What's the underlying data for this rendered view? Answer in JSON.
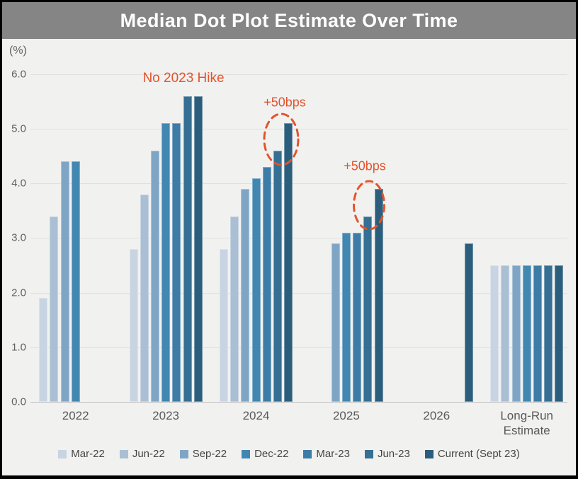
{
  "window": {
    "title": "Median Dot Plot Estimate Over Time"
  },
  "chart_data": {
    "type": "bar",
    "title": "Median Dot Plot Estimate Over Time",
    "ylabel": "(%)",
    "ylim": [
      0,
      6
    ],
    "grid": true,
    "legend_position": "bottom",
    "y_ticks": [
      {
        "label": "6.0",
        "value": 6.0
      },
      {
        "label": "5.0",
        "value": 5.0
      },
      {
        "label": "4.0",
        "value": 4.0
      },
      {
        "label": "3.0",
        "value": 3.0
      },
      {
        "label": "2.0",
        "value": 2.0
      },
      {
        "label": "1.0",
        "value": 1.0
      },
      {
        "label": "0.0",
        "value": 0.0
      }
    ],
    "categories": [
      "2022",
      "2023",
      "2024",
      "2025",
      "2026",
      "Long-Run Estimate"
    ],
    "series": [
      {
        "name": "Mar-22",
        "color": "#c8d4e2",
        "values": [
          1.9,
          2.8,
          2.8,
          null,
          null,
          2.5
        ]
      },
      {
        "name": "Jun-22",
        "color": "#aabfd4",
        "values": [
          3.4,
          3.8,
          3.4,
          null,
          null,
          2.5
        ]
      },
      {
        "name": "Sep-22",
        "color": "#7fa5c5",
        "values": [
          4.4,
          4.6,
          3.9,
          2.9,
          null,
          2.5
        ]
      },
      {
        "name": "Dec-22",
        "color": "#4187b2",
        "values": [
          4.4,
          5.1,
          4.1,
          3.1,
          null,
          2.5
        ]
      },
      {
        "name": "Mar-23",
        "color": "#3d7ca6",
        "values": [
          null,
          5.1,
          4.3,
          3.1,
          null,
          2.5
        ]
      },
      {
        "name": "Jun-23",
        "color": "#356f93",
        "values": [
          null,
          5.6,
          4.6,
          3.4,
          null,
          2.5
        ]
      },
      {
        "name": "Current (Sept 23)",
        "color": "#2b5e7d",
        "values": [
          null,
          5.6,
          5.1,
          3.9,
          2.9,
          2.5
        ]
      }
    ],
    "annotations": [
      {
        "text": "No 2023 Hike",
        "color": "#e2542c",
        "target": "2023 cluster (Jun-23 and Current dots unchanged at 5.6)"
      },
      {
        "text": "+50bps",
        "color": "#e2542c",
        "target": "2024: jump from Jun-23 (4.6) to Current (5.1)",
        "ellipse": true
      },
      {
        "text": "+50bps",
        "color": "#e2542c",
        "target": "2025: jump from Jun-23 (3.4) to Current (3.9)",
        "ellipse": true
      }
    ]
  }
}
